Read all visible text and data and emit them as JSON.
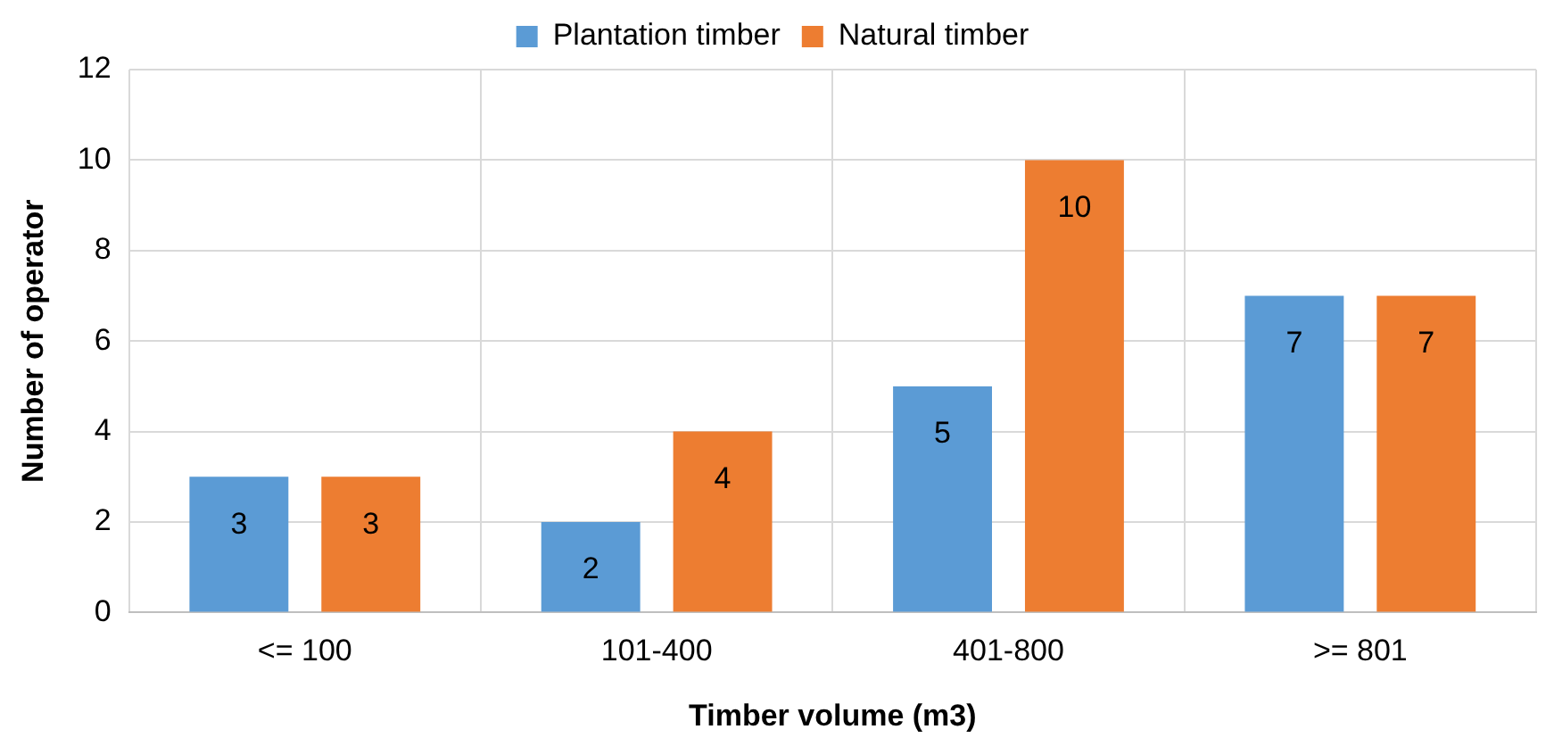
{
  "chart_data": {
    "type": "bar",
    "categories": [
      "<= 100",
      "101-400",
      "401-800",
      ">= 801"
    ],
    "series": [
      {
        "name": "Plantation timber",
        "color": "#5b9bd5",
        "values": [
          3,
          2,
          5,
          7
        ]
      },
      {
        "name": "Natural timber",
        "color": "#ed7d31",
        "values": [
          3,
          4,
          10,
          7
        ]
      }
    ],
    "xlabel": "Timber volume (m3)",
    "ylabel": "Number of operator",
    "ylim": [
      0,
      12
    ],
    "yticks": [
      0,
      2,
      4,
      6,
      8,
      10,
      12
    ],
    "grid": true,
    "legend": "top",
    "data_labels": true
  }
}
